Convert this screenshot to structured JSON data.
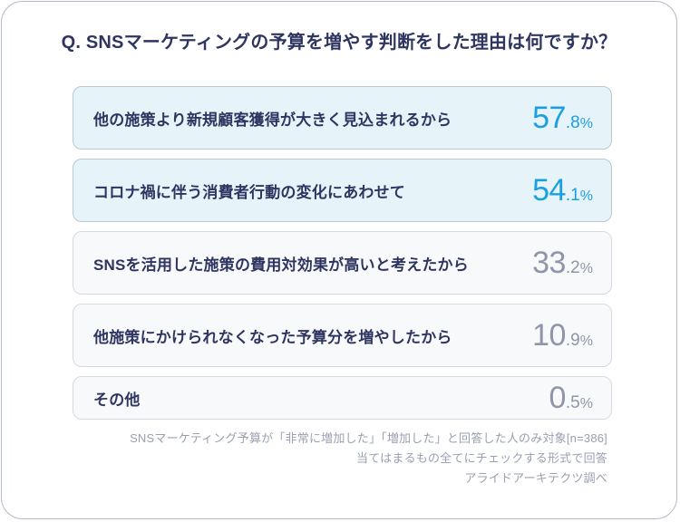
{
  "title": "Q. SNSマーケティングの予算を増やす判断をした理由は何ですか？",
  "rows": [
    {
      "label": "他の施策より新規顧客獲得が大きく見込まれるから",
      "percent_main": "57",
      "percent_sub": ".8",
      "percent_sign": "%",
      "highlighted": true
    },
    {
      "label": "コロナ禍に伴う消費者行動の変化にあわせて",
      "percent_main": "54",
      "percent_sub": ".1",
      "percent_sign": "%",
      "highlighted": true
    },
    {
      "label": "SNSを活用した施策の費用対効果が高いと考えたから",
      "percent_main": "33",
      "percent_sub": ".2",
      "percent_sign": "%",
      "highlighted": false
    },
    {
      "label": "他施策にかけられなくなった予算分を増やしたから",
      "percent_main": "10",
      "percent_sub": ".9",
      "percent_sign": "%",
      "highlighted": false
    },
    {
      "label": "その他",
      "percent_main": "0",
      "percent_sub": ".5",
      "percent_sign": "%",
      "highlighted": false
    }
  ],
  "footer": {
    "lines": [
      "SNSマーケティング予算が「非常に増加した」「増加した」と回答した人のみ対象[n=386]",
      "当てはまるもの全てにチェックする形式で回答",
      "アライドアーキテクツ調べ"
    ]
  },
  "colors": {
    "title_navy": "#2e3560",
    "highlight_percent_blue": "#1b9fe0",
    "muted_percent_gray": "#9195a9",
    "highlight_row_bg": "#e6f4fa",
    "muted_row_bg": "#f8f9fb",
    "card_border": "#b2b9c8",
    "footer_gray": "#9aa0b3"
  },
  "chart_data": {
    "type": "bar",
    "title": "Q. SNSマーケティングの予算を増やす判断をした理由は何ですか？",
    "categories": [
      "他の施策より新規顧客獲得が大きく見込まれるから",
      "コロナ禍に伴う消費者行動の変化にあわせて",
      "SNSを活用した施策の費用対効果が高いと考えたから",
      "他施策にかけられなくなった予算分を増やしたから",
      "その他"
    ],
    "values": [
      57.8,
      54.1,
      33.2,
      10.9,
      0.5
    ],
    "unit": "%",
    "highlighted_indices": [
      0,
      1
    ],
    "sample_size": 386,
    "annotations": [
      "SNSマーケティング予算が「非常に増加した」「増加した」と回答した人のみ対象[n=386]",
      "当てはまるもの全てにチェックする形式で回答",
      "アライドアーキテクツ調べ"
    ]
  }
}
